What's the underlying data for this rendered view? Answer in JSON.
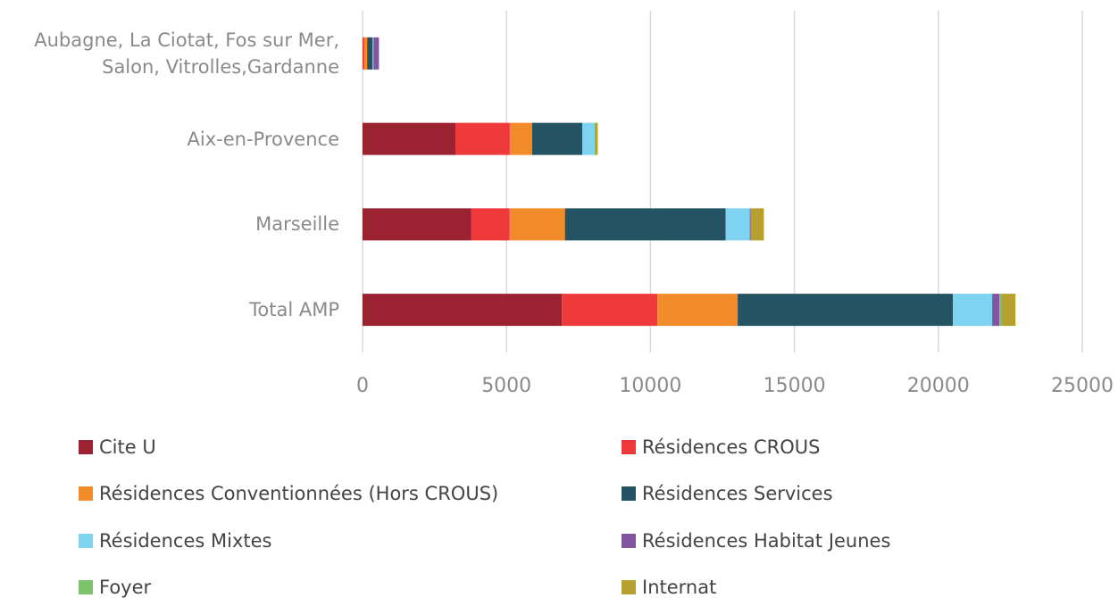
{
  "chart_data": {
    "type": "bar",
    "orientation": "horizontal",
    "stacked": true,
    "categories": [
      "Aubagne, La Ciotat, Fos sur Mer, Salon, Vitrolles,Gardanne",
      "Aix-en-Provence",
      "Marseille",
      "Total AMP"
    ],
    "series": [
      {
        "name": "Cite U",
        "color": "#9b2230",
        "values": [
          0,
          3225,
          3780,
          6920
        ]
      },
      {
        "name": "Résidences CROUS",
        "color": "#ee3a3a",
        "values": [
          60,
          1890,
          1330,
          3320
        ]
      },
      {
        "name": "Résidences Conventionnées (Hors CROUS)",
        "color": "#f28c2b",
        "values": [
          100,
          775,
          1920,
          2790
        ]
      },
      {
        "name": "Résidences Services",
        "color": "#245364",
        "values": [
          190,
          1740,
          5580,
          7475
        ]
      },
      {
        "name": "Résidences Mixtes",
        "color": "#7dd3f0",
        "values": [
          30,
          430,
          840,
          1365
        ]
      },
      {
        "name": "Résidences Habitat Jeunes",
        "color": "#8155a0",
        "values": [
          190,
          0,
          30,
          250
        ]
      },
      {
        "name": "Foyer",
        "color": "#7dc36b",
        "values": [
          0,
          20,
          0,
          60
        ]
      },
      {
        "name": "Internat",
        "color": "#b5a030",
        "values": [
          0,
          90,
          460,
          500
        ]
      }
    ],
    "xlim": [
      0,
      25000
    ],
    "xticks": [
      0,
      5000,
      10000,
      15000,
      20000,
      25000
    ],
    "grid": true,
    "legend": "bottom"
  }
}
